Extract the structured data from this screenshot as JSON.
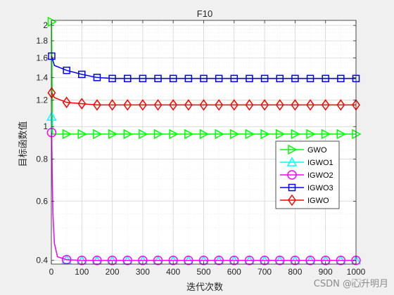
{
  "chart_data": {
    "type": "line",
    "title": "F10",
    "xlabel": "迭代次数",
    "ylabel": "目标函数值",
    "xlim": [
      0,
      1000
    ],
    "ylim": [
      0.39,
      2.07
    ],
    "yscale": "log",
    "xticks": [
      0,
      100,
      200,
      300,
      400,
      500,
      600,
      700,
      800,
      900,
      1000
    ],
    "yticks": [
      0.4,
      0.6,
      0.8,
      1,
      1.2,
      1.4,
      1.6,
      1.8,
      2
    ],
    "ytick_labels": [
      "0.4",
      "0.6",
      "0.8",
      "1",
      "1.2",
      "1.4",
      "1.6",
      "1.8",
      "2"
    ],
    "grid": true,
    "legend_position": "right",
    "series": [
      {
        "name": "GWO",
        "color": "#00ff00",
        "marker": "triangle-right",
        "x": [
          1,
          4,
          1000
        ],
        "y": [
          2.05,
          0.95,
          0.95
        ]
      },
      {
        "name": "IGWO1",
        "color": "#00ffff",
        "marker": "triangle-up",
        "x": [
          1,
          3,
          5,
          10,
          20,
          50,
          100,
          1000
        ],
        "y": [
          1.07,
          0.7,
          0.55,
          0.45,
          0.41,
          0.402,
          0.4,
          0.4
        ]
      },
      {
        "name": "IGWO2",
        "color": "#ff00ff",
        "marker": "circle",
        "x": [
          1,
          3,
          5,
          10,
          20,
          50,
          100,
          1000
        ],
        "y": [
          0.96,
          0.7,
          0.55,
          0.45,
          0.41,
          0.402,
          0.4,
          0.4
        ]
      },
      {
        "name": "IGWO3",
        "color": "#0000ff",
        "marker": "square",
        "x": [
          1,
          10,
          50,
          100,
          150,
          200,
          1000
        ],
        "y": [
          1.62,
          1.52,
          1.47,
          1.43,
          1.4,
          1.39,
          1.39
        ]
      },
      {
        "name": "IGWO",
        "color": "#ff0000",
        "marker": "diamond",
        "x": [
          1,
          10,
          50,
          100,
          150,
          1000
        ],
        "y": [
          1.26,
          1.22,
          1.18,
          1.17,
          1.16,
          1.16
        ]
      }
    ]
  },
  "watermark": "CSDN @心⃞升明月"
}
